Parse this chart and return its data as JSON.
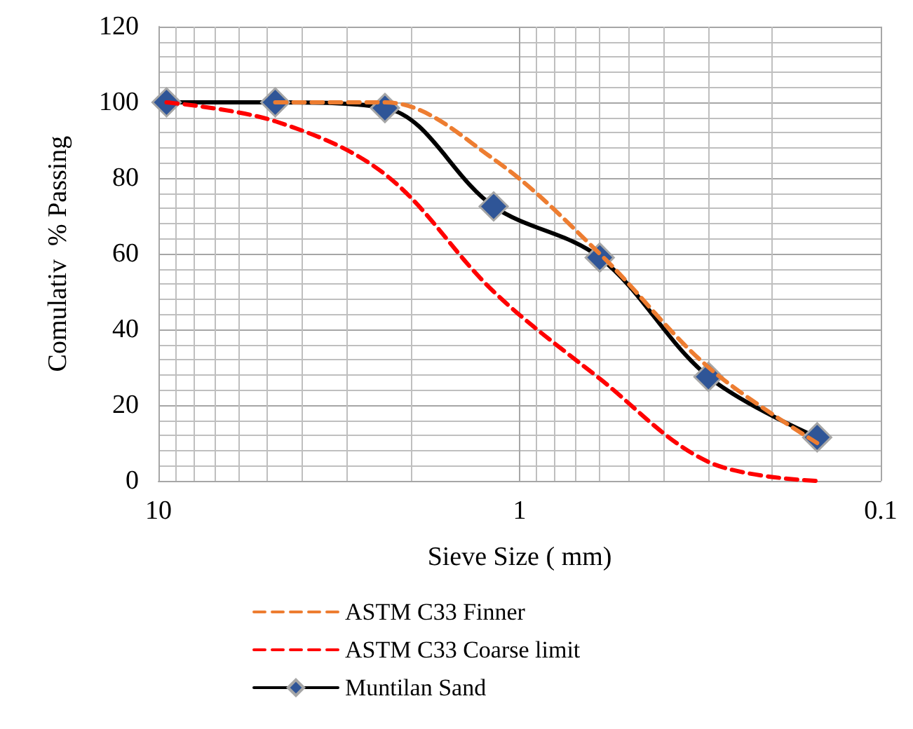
{
  "chart_data": {
    "type": "line",
    "xlabel": "Sieve Size ( mm)",
    "ylabel": "Comulativ  % Passing",
    "series": [
      {
        "name": "ASTM C33 Finner",
        "color": "#ed7d31",
        "line_style": "dashed",
        "marker": "none",
        "x": [
          4.75,
          2.36,
          1.18,
          0.6,
          0.3,
          0.15
        ],
        "values": [
          100,
          100,
          85,
          60,
          30,
          10
        ]
      },
      {
        "name": "ASTM C33 Coarse limit",
        "color": "#ff0000",
        "line_style": "dashed",
        "marker": "none",
        "x": [
          9.5,
          4.75,
          2.36,
          1.18,
          0.6,
          0.3,
          0.15
        ],
        "values": [
          100,
          95,
          81,
          50,
          27,
          5,
          0
        ]
      },
      {
        "name": "Muntilan Sand",
        "color": "#000000",
        "line_style": "solid",
        "marker": "diamond",
        "x": [
          9.5,
          4.75,
          2.36,
          1.18,
          0.6,
          0.3,
          0.15
        ],
        "values": [
          100,
          100,
          98.5,
          72.5,
          59,
          27.5,
          11.5
        ]
      }
    ],
    "log": "x",
    "xlim": [
      10,
      0.1
    ],
    "xticks": [
      10,
      1,
      0.1
    ],
    "ylim": [
      0,
      120
    ],
    "yticks": [
      0,
      20,
      40,
      60,
      80,
      100,
      120
    ],
    "grid": true,
    "legend": "bottom"
  }
}
